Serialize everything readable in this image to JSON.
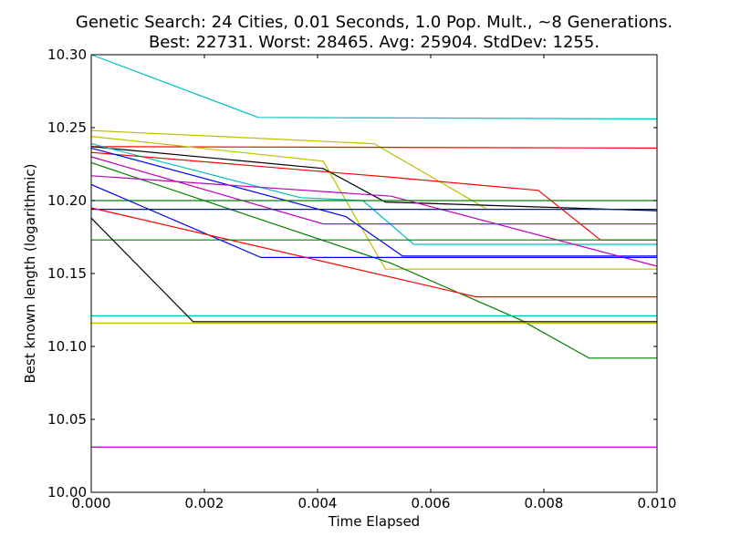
{
  "chart_data": {
    "type": "line",
    "title_line1": "Genetic Search: 24 Cities, 0.01 Seconds, 1.0 Pop. Mult., ~8 Generations.",
    "title_line2": "Best: 22731. Worst: 28465. Avg: 25904. StdDev: 1255.",
    "xlabel": "Time Elapsed",
    "ylabel": "Best known length (logarithmic)",
    "xlim": [
      0.0,
      0.01
    ],
    "ylim": [
      10.0,
      10.3
    ],
    "xticks": [
      "0.000",
      "0.002",
      "0.004",
      "0.006",
      "0.008",
      "0.010"
    ],
    "xtick_values": [
      0.0,
      0.002,
      0.004,
      0.006,
      0.008,
      0.01
    ],
    "yticks": [
      "10.00",
      "10.05",
      "10.10",
      "10.15",
      "10.20",
      "10.25",
      "10.30"
    ],
    "ytick_values": [
      10.0,
      10.05,
      10.1,
      10.15,
      10.2,
      10.25,
      10.3
    ],
    "grid": false,
    "series": [
      {
        "color": "#00bfbf",
        "points": [
          [
            0.0,
            10.3
          ],
          [
            0.00295,
            10.257
          ],
          [
            0.01,
            10.256
          ]
        ]
      },
      {
        "color": "#bfbf00",
        "points": [
          [
            0.0,
            10.248
          ],
          [
            0.005,
            10.239
          ],
          [
            0.007,
            10.194
          ]
        ]
      },
      {
        "color": "#ff0000",
        "points": [
          [
            0.0,
            10.237
          ],
          [
            0.01,
            10.236
          ]
        ]
      },
      {
        "color": "#bfbf00",
        "points": [
          [
            0.0,
            10.244
          ],
          [
            0.0041,
            10.227
          ],
          [
            0.0052,
            10.153
          ],
          [
            0.01,
            10.153
          ]
        ]
      },
      {
        "color": "#000000",
        "points": [
          [
            0.0,
            10.237
          ],
          [
            0.0041,
            10.222
          ],
          [
            0.0052,
            10.199
          ],
          [
            0.01,
            10.193
          ]
        ]
      },
      {
        "color": "#00bfbf",
        "points": [
          [
            0.0,
            10.239
          ],
          [
            0.0037,
            10.202
          ],
          [
            0.0048,
            10.2
          ],
          [
            0.0057,
            10.17
          ],
          [
            0.01,
            10.17
          ]
        ]
      },
      {
        "color": "#ff0000",
        "points": [
          [
            0.0,
            10.233
          ],
          [
            0.0053,
            10.216
          ],
          [
            0.0079,
            10.207
          ],
          [
            0.009,
            10.173
          ],
          [
            0.01,
            10.173
          ]
        ]
      },
      {
        "color": "#bf00bf",
        "points": [
          [
            0.0,
            10.23
          ],
          [
            0.0041,
            10.184
          ],
          [
            0.01,
            10.184
          ]
        ]
      },
      {
        "color": "#0000ff",
        "points": [
          [
            0.0,
            10.236
          ],
          [
            0.0045,
            10.189
          ],
          [
            0.0055,
            10.162
          ],
          [
            0.01,
            10.162
          ]
        ]
      },
      {
        "color": "#008000",
        "points": [
          [
            0.0,
            10.226
          ],
          [
            0.0053,
            10.157
          ],
          [
            0.0076,
            10.118
          ],
          [
            0.0088,
            10.092
          ],
          [
            0.01,
            10.092
          ]
        ]
      },
      {
        "color": "#bf00bf",
        "points": [
          [
            0.0,
            10.217
          ],
          [
            0.0053,
            10.203
          ],
          [
            0.01,
            10.155
          ]
        ]
      },
      {
        "color": "#008000",
        "points": [
          [
            0.0,
            10.2
          ],
          [
            0.01,
            10.2
          ]
        ]
      },
      {
        "color": "#0000ff",
        "points": [
          [
            0.0,
            10.211
          ],
          [
            0.003,
            10.161
          ],
          [
            0.01,
            10.161
          ]
        ]
      },
      {
        "color": "#0000ff",
        "points": [
          [
            0.0,
            10.194
          ],
          [
            0.01,
            10.194
          ]
        ]
      },
      {
        "color": "#ff0000",
        "points": [
          [
            0.0,
            10.195
          ],
          [
            0.0068,
            10.134
          ],
          [
            0.01,
            10.134
          ]
        ]
      },
      {
        "color": "#008000",
        "points": [
          [
            0.0,
            10.173
          ],
          [
            0.01,
            10.173
          ]
        ]
      },
      {
        "color": "#00bfbf",
        "points": [
          [
            0.0,
            10.121
          ],
          [
            0.01,
            10.121
          ]
        ]
      },
      {
        "color": "#000000",
        "points": [
          [
            0.0,
            10.188
          ],
          [
            0.0018,
            10.117
          ],
          [
            0.01,
            10.117
          ]
        ]
      },
      {
        "color": "#bfbf00",
        "points": [
          [
            0.0,
            10.116
          ],
          [
            0.01,
            10.116
          ]
        ]
      },
      {
        "color": "#bf00bf",
        "points": [
          [
            0.0,
            10.031
          ],
          [
            0.01,
            10.031
          ]
        ]
      }
    ]
  }
}
